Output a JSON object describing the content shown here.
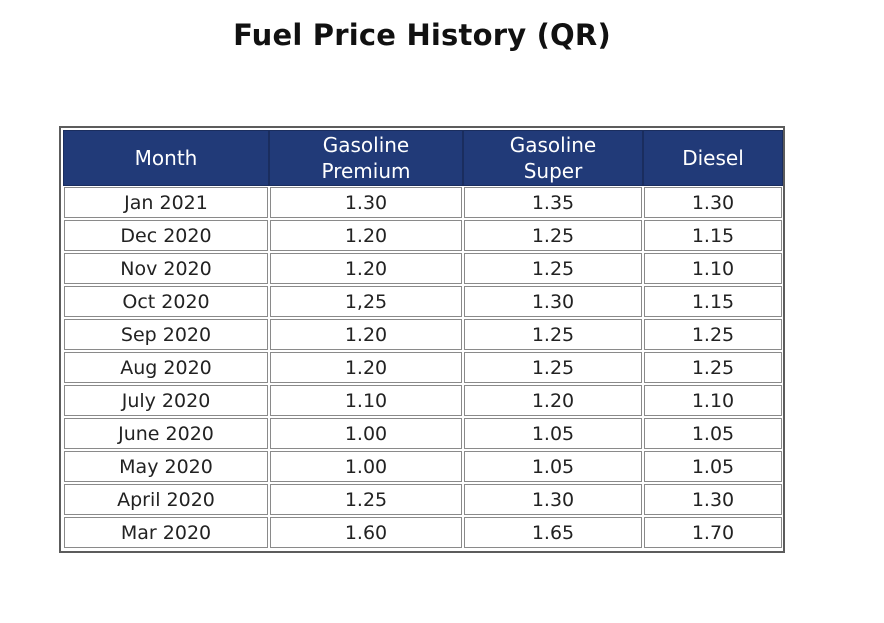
{
  "title": "Fuel Price History (QR)",
  "table": {
    "headers": [
      {
        "line1": "Month",
        "line2": ""
      },
      {
        "line1": "Gasoline",
        "line2": "Premium"
      },
      {
        "line1": "Gasoline",
        "line2": "Super"
      },
      {
        "line1": "Diesel",
        "line2": ""
      }
    ],
    "rows": [
      [
        "Jan 2021",
        "1.30",
        "1.35",
        "1.30"
      ],
      [
        "Dec 2020",
        "1.20",
        "1.25",
        "1.15"
      ],
      [
        "Nov 2020",
        "1.20",
        "1.25",
        "1.10"
      ],
      [
        "Oct 2020",
        "1,25",
        "1.30",
        "1.15"
      ],
      [
        "Sep 2020",
        "1.20",
        "1.25",
        "1.25"
      ],
      [
        "Aug 2020",
        "1.20",
        "1.25",
        "1.25"
      ],
      [
        "July 2020",
        "1.10",
        "1.20",
        "1.10"
      ],
      [
        "June 2020",
        "1.00",
        "1.05",
        "1.05"
      ],
      [
        "May 2020",
        "1.00",
        "1.05",
        "1.05"
      ],
      [
        "April 2020",
        "1.25",
        "1.30",
        "1.30"
      ],
      [
        "Mar 2020",
        "1.60",
        "1.65",
        "1.70"
      ]
    ]
  },
  "colors": {
    "header_bg": "#213a78",
    "header_text": "#ffffff",
    "border": "#8a8a8a"
  }
}
